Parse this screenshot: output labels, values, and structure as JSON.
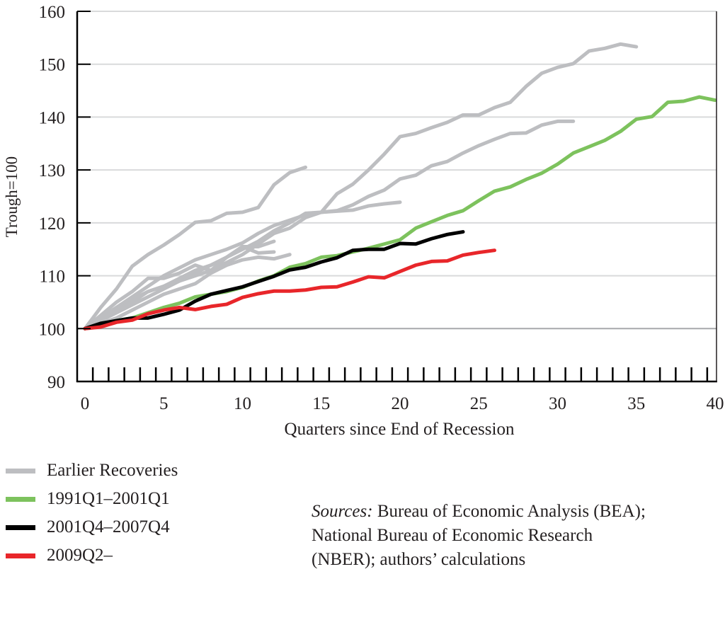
{
  "chart_data": {
    "type": "line",
    "title": "",
    "xlabel": "Quarters since End of Recession",
    "ylabel": "Trough=100",
    "xlim": [
      0,
      40
    ],
    "ylim": [
      90,
      160
    ],
    "xticks": [
      "0",
      "5",
      "10",
      "15",
      "20",
      "25",
      "30",
      "35",
      "40"
    ],
    "yticks": [
      "90",
      "100",
      "110",
      "120",
      "130",
      "140",
      "150",
      "160"
    ],
    "grid": true,
    "legend_position": "below-left",
    "series": [
      {
        "name": "Earlier Recoveries",
        "color": "#bdbec1",
        "values": [
          100,
          104,
          107.5,
          111.8,
          114,
          115.8,
          117.8,
          120.1,
          120.4,
          121.8,
          122,
          122.9,
          127.2,
          129.5,
          130.5
        ]
      },
      {
        "name": "Earlier Recoveries",
        "color": "#bdbec1",
        "values": [
          100,
          102,
          104,
          105.5,
          107,
          108,
          109,
          110,
          111,
          112.5,
          114,
          116,
          118,
          119,
          121,
          122,
          125.5,
          127.3,
          130,
          133,
          136.3,
          136.9,
          138,
          139,
          140.4,
          140.4,
          141.8,
          142.8,
          145.8,
          148.3,
          149.4,
          150.1,
          152.5,
          153,
          153.8,
          153.3
        ]
      },
      {
        "name": "Earlier Recoveries",
        "color": "#bdbec1",
        "values": [
          100,
          101.5,
          103,
          104.5,
          106,
          107.5,
          109,
          110.5,
          112,
          113.5,
          115,
          116.5,
          118.5,
          120,
          121.8,
          122,
          122.3,
          123.4,
          125,
          126.2,
          128.3,
          129,
          130.8,
          131.6,
          133.2,
          134.6,
          135.8,
          136.9,
          137,
          138.5,
          139.2,
          139.2
        ]
      },
      {
        "name": "Earlier Recoveries",
        "color": "#bdbec1",
        "values": [
          100,
          102,
          104,
          106,
          108,
          110,
          111.5,
          113,
          114,
          115,
          116.2,
          118,
          119.5,
          120.5,
          121.5,
          122,
          122.2,
          122.4,
          123.2,
          123.6,
          123.9
        ]
      },
      {
        "name": "Earlier Recoveries",
        "color": "#bdbec1",
        "values": [
          100,
          102.5,
          105,
          107,
          109.5,
          109.5,
          110.5,
          112,
          111,
          113.5,
          115.5,
          115.5,
          116.5
        ]
      },
      {
        "name": "Earlier Recoveries",
        "color": "#bdbec1",
        "values": [
          100,
          101,
          102,
          103.5,
          105,
          106.5,
          107.5,
          108.5,
          110.5,
          112,
          113,
          113.5,
          113.2,
          114
        ]
      },
      {
        "name": "Earlier Recoveries",
        "color": "#bdbec1",
        "values": [
          100,
          102,
          103.5,
          105,
          107,
          108,
          109.5,
          111,
          112,
          113.5,
          115.5,
          114.3,
          114.5
        ]
      },
      {
        "name": "1991Q1–2001Q1",
        "color": "#7dc25d",
        "values": [
          100,
          100.8,
          101.5,
          102,
          103,
          104,
          104.8,
          106,
          106.5,
          107,
          107.8,
          109,
          110,
          111.6,
          112.3,
          113.5,
          113.8,
          114.5,
          115.2,
          116,
          116.8,
          119,
          120.2,
          121.4,
          122.3,
          124.2,
          126,
          126.8,
          128.2,
          129.4,
          131.1,
          133.2,
          134.4,
          135.6,
          137.3,
          139.6,
          140.1,
          142.8,
          143,
          143.8,
          143.2
        ]
      },
      {
        "name": "2001Q4–2007Q4",
        "color": "#000000",
        "values": [
          100,
          101,
          101.5,
          102,
          102,
          102.7,
          103.5,
          105.2,
          106.5,
          107.2,
          107.9,
          108.9,
          109.9,
          111.1,
          111.6,
          112.6,
          113.4,
          114.8,
          115,
          115,
          116.1,
          116,
          117,
          117.8,
          118.3
        ]
      },
      {
        "name": "2009Q2–",
        "color": "#e8262a",
        "values": [
          100,
          100.3,
          101.2,
          101.6,
          102.8,
          103.5,
          104,
          103.6,
          104.2,
          104.6,
          105.9,
          106.6,
          107.1,
          107.1,
          107.3,
          107.8,
          107.9,
          108.8,
          109.8,
          109.6,
          110.8,
          112,
          112.7,
          112.8,
          113.9,
          114.4,
          114.8
        ]
      }
    ]
  },
  "legend": [
    {
      "label": "Earlier Recoveries",
      "color": "#bdbec1"
    },
    {
      "label": "1991Q1–2001Q1",
      "color": "#7dc25d"
    },
    {
      "label": "2001Q4–2007Q4",
      "color": "#000000"
    },
    {
      "label": "2009Q2–",
      "color": "#e8262a"
    }
  ],
  "sources": {
    "prefix": "Sources:",
    "line1": " Bureau of Economic Analysis (BEA);",
    "line2": "National Bureau of Economic Research",
    "line3": "(NBER); authors’ calculations"
  }
}
